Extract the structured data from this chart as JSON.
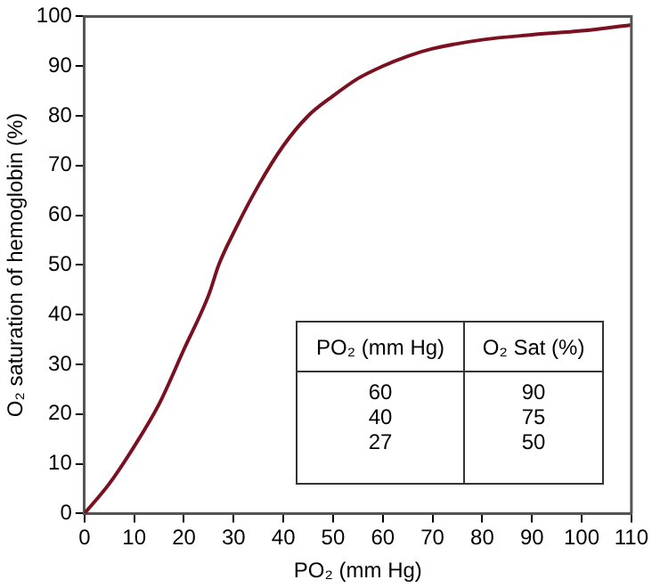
{
  "chart_data": {
    "type": "line",
    "xlabel": "PO₂ (mm Hg)",
    "ylabel": "O₂ saturation of hemoglobin (%)",
    "x": [
      0,
      5,
      10,
      15,
      20,
      25,
      27,
      30,
      35,
      40,
      45,
      50,
      55,
      60,
      65,
      70,
      80,
      90,
      100,
      110
    ],
    "series": [
      {
        "color": "#7b1020",
        "values": [
          0,
          6,
          13.5,
          22,
          33,
          44,
          50,
          56.5,
          66,
          74,
          80,
          84,
          87.5,
          90,
          92,
          93.5,
          95.3,
          96.3,
          97.1,
          98.3
        ]
      }
    ],
    "xlim": [
      0,
      110
    ],
    "ylim": [
      0,
      100
    ],
    "xticks": [
      0,
      10,
      20,
      30,
      40,
      50,
      60,
      70,
      80,
      90,
      100,
      110
    ],
    "yticks": [
      0,
      10,
      20,
      30,
      40,
      50,
      60,
      70,
      80,
      90,
      100
    ],
    "marker": "none",
    "line_style": "solid",
    "grid": false,
    "legend": false,
    "annotations": [
      "PO₂ (mm Hg)",
      "O₂ Sat (%)",
      "60",
      "90",
      "40",
      "75",
      "27",
      "50"
    ]
  }
}
